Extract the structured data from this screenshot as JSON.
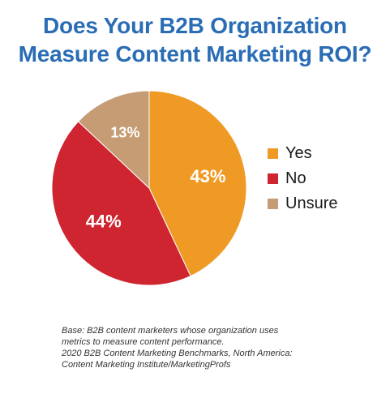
{
  "title_lines": [
    "Does Your B2B Organization",
    "Measure Content Marketing ROI?"
  ],
  "colors": {
    "title": "#2a6db5",
    "yes": "#ef9a24",
    "no": "#cf2530",
    "unsure": "#c59c74"
  },
  "chart_data": {
    "type": "pie",
    "title": "Does Your B2B Organization Measure Content Marketing ROI?",
    "slices": [
      {
        "label": "Yes",
        "value": 43,
        "display": "43%",
        "color": "#ef9a24"
      },
      {
        "label": "No",
        "value": 44,
        "display": "44%",
        "color": "#cf2530"
      },
      {
        "label": "Unsure",
        "value": 13,
        "display": "13%",
        "color": "#c59c74"
      }
    ],
    "legend": "right"
  },
  "footnote_lines": [
    "Base: B2B content marketers whose organization uses",
    "metrics to measure content performance.",
    "2020 B2B Content Marketing Benchmarks, North America:",
    "Content Marketing Institute/MarketingProfs"
  ]
}
